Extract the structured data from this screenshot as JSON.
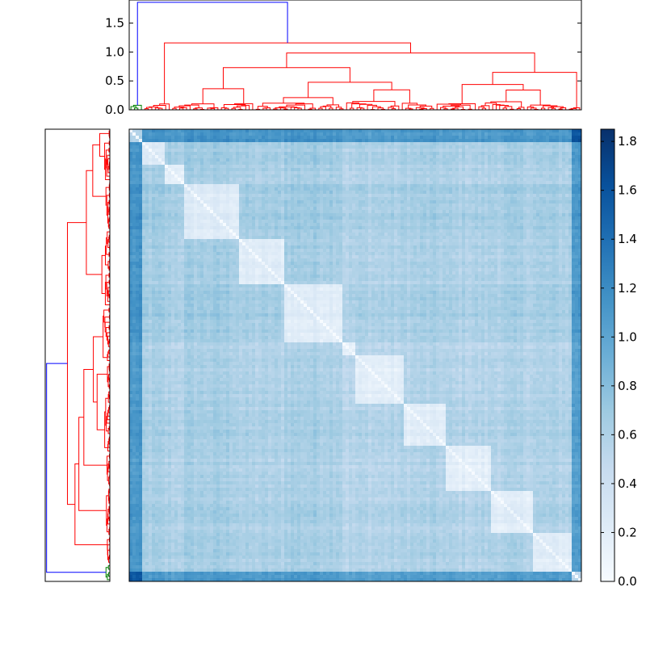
{
  "chart_data": [
    {
      "type": "dendrogram",
      "orientation": "top",
      "ylim": [
        0.0,
        1.9
      ],
      "yticks": [
        {
          "value": 0.0,
          "label": "0.0"
        },
        {
          "value": 0.5,
          "label": "0.5"
        },
        {
          "value": 1.0,
          "label": "1.0"
        },
        {
          "value": 1.5,
          "label": "1.5"
        }
      ],
      "root_height": 1.86,
      "colors": {
        "root": "#0000ff",
        "cluster_a": "#ff0000",
        "cluster_b": "#008000"
      }
    },
    {
      "type": "dendrogram",
      "orientation": "left",
      "root_height": 1.86,
      "colors": {
        "root": "#0000ff",
        "cluster_a": "#ff0000",
        "cluster_b": "#008000"
      }
    },
    {
      "type": "heatmap",
      "colormap": "Blues",
      "vmin": 0.0,
      "vmax": 1.85,
      "colorbar_ticks": [
        {
          "value": 0.0,
          "label": "0.0"
        },
        {
          "value": 0.2,
          "label": "0.2"
        },
        {
          "value": 0.4,
          "label": "0.4"
        },
        {
          "value": 0.6,
          "label": "0.6"
        },
        {
          "value": 0.8,
          "label": "0.8"
        },
        {
          "value": 1.0,
          "label": "1.0"
        },
        {
          "value": 1.2,
          "label": "1.2"
        },
        {
          "value": 1.4,
          "label": "1.4"
        },
        {
          "value": 1.6,
          "label": "1.6"
        },
        {
          "value": 1.8,
          "label": "1.8"
        }
      ],
      "blocks": [
        {
          "from": 0.0,
          "to": 0.03,
          "level": 1.45
        },
        {
          "from": 0.03,
          "to": 0.08,
          "level": 0.5
        },
        {
          "from": 0.08,
          "to": 0.12,
          "level": 0.45
        },
        {
          "from": 0.12,
          "to": 0.24,
          "level": 0.55
        },
        {
          "from": 0.24,
          "to": 0.34,
          "level": 0.45
        },
        {
          "from": 0.34,
          "to": 0.47,
          "level": 0.55
        },
        {
          "from": 0.47,
          "to": 0.5,
          "level": 0.35
        },
        {
          "from": 0.5,
          "to": 0.61,
          "level": 0.4
        },
        {
          "from": 0.61,
          "to": 0.7,
          "level": 0.45
        },
        {
          "from": 0.7,
          "to": 0.8,
          "level": 0.4
        },
        {
          "from": 0.8,
          "to": 0.89,
          "level": 0.45
        },
        {
          "from": 0.89,
          "to": 0.98,
          "level": 0.45
        },
        {
          "from": 0.98,
          "to": 1.0,
          "level": 1.4
        }
      ]
    }
  ]
}
